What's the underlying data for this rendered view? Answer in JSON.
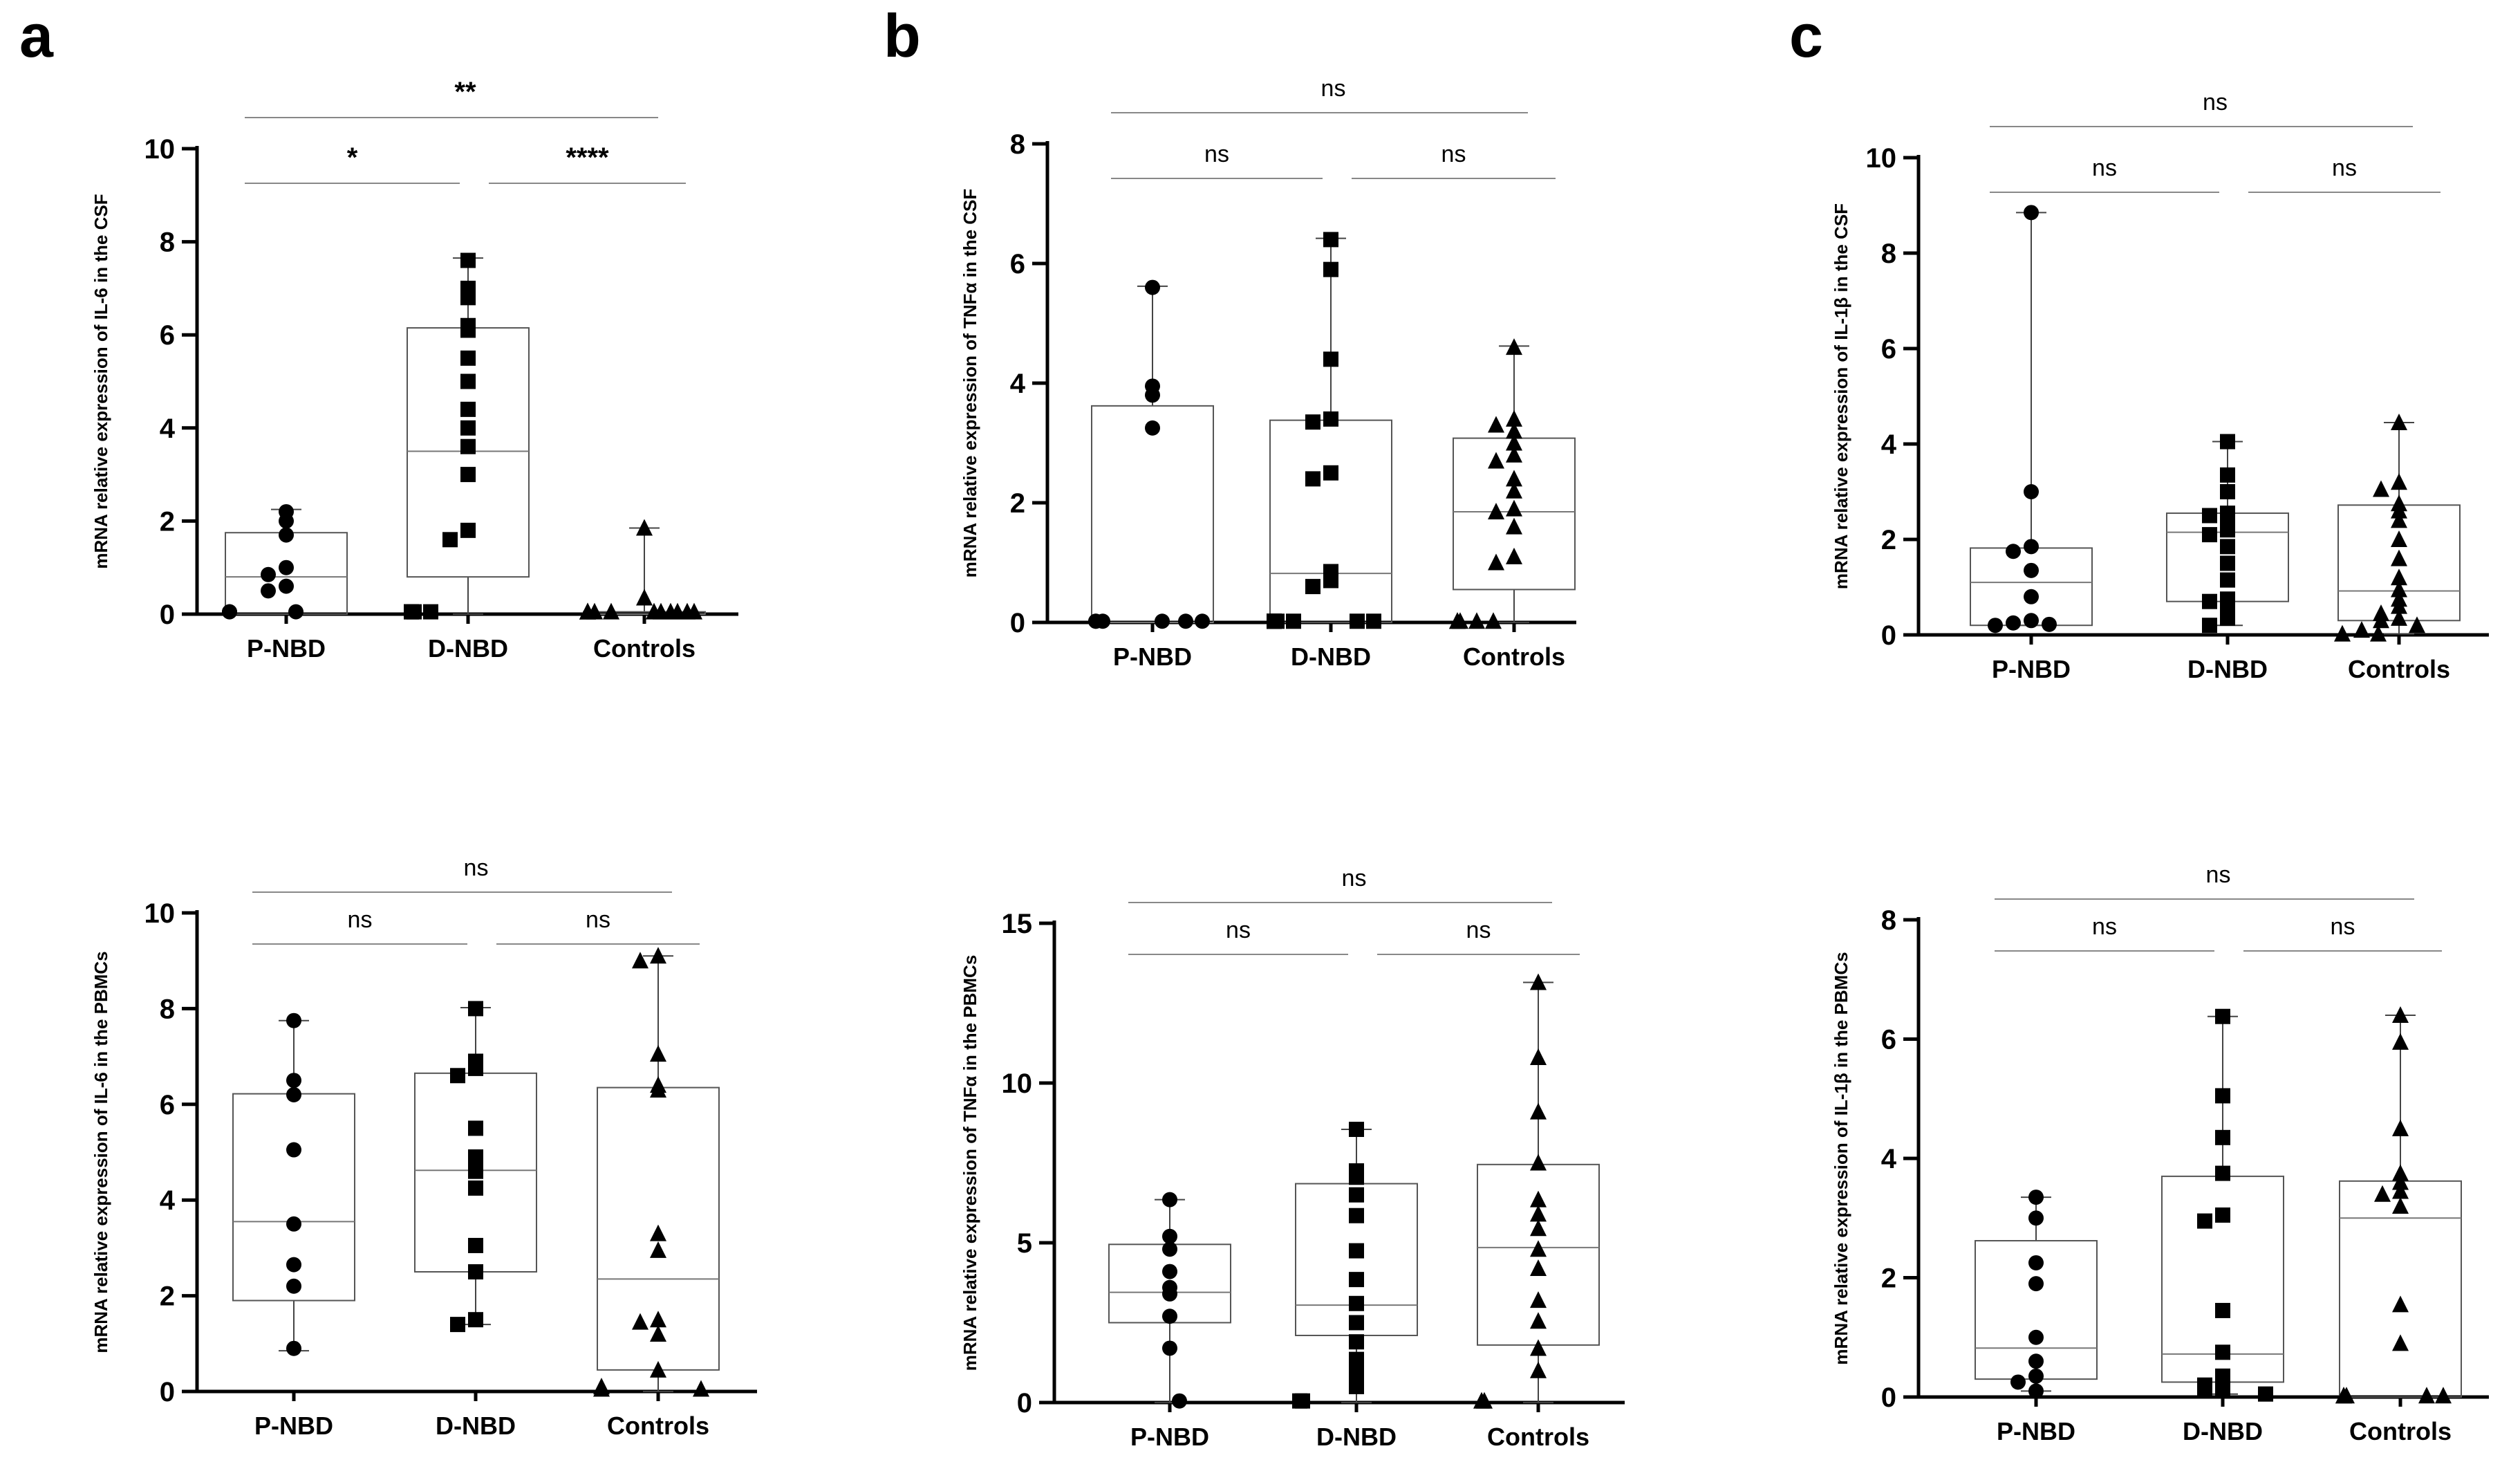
{
  "panel_letters": [
    "a",
    "b",
    "c"
  ],
  "chart_data": [
    {
      "panel": "a",
      "row": "top",
      "type": "box",
      "ylabel": "mRNA relative expression of  IL-6 in  the CSF",
      "ylim": [
        0,
        10
      ],
      "yticks": [
        0,
        2,
        4,
        6,
        8,
        10
      ],
      "categories": [
        "P-NBD",
        "D-NBD",
        "Controls"
      ],
      "markers": [
        "circle",
        "square",
        "triangle"
      ],
      "boxes": [
        {
          "min": 0,
          "q1": 0,
          "median": 0.8,
          "q3": 1.75,
          "max": 2.25
        },
        {
          "min": 0,
          "q1": 0.8,
          "median": 3.5,
          "q3": 6.15,
          "max": 7.65
        },
        {
          "min": 0,
          "q1": 0,
          "median": 0,
          "q3": 0.05,
          "max": 1.85
        }
      ],
      "points": [
        [
          2.2,
          2.0,
          1.7,
          1.0,
          0.85,
          0.6,
          0.5,
          0.05,
          0.05,
          0.05
        ],
        [
          7.6,
          7.0,
          6.8,
          6.2,
          6.1,
          5.5,
          5.0,
          4.4,
          4.0,
          3.6,
          3.0,
          1.8,
          1.6,
          0.05,
          0.05,
          0.05,
          0.05
        ],
        [
          1.85,
          0.35,
          0.05,
          0.05,
          0.05,
          0.05,
          0.05,
          0.05,
          0.05,
          0.05,
          0.05,
          0.05,
          0.05,
          0.05
        ]
      ],
      "comparisons": [
        {
          "from": 0,
          "to": 1,
          "label": "*",
          "level": 1
        },
        {
          "from": 1,
          "to": 2,
          "label": "****",
          "level": 1
        },
        {
          "from": 0,
          "to": 2,
          "label": "**",
          "level": 2
        }
      ]
    },
    {
      "panel": "b",
      "row": "top",
      "type": "box",
      "ylabel": "mRNA relative expression of TNFα in  the CSF",
      "ylim": [
        0,
        8
      ],
      "yticks": [
        0,
        2,
        4,
        6,
        8
      ],
      "categories": [
        "P-NBD",
        "D-NBD",
        "Controls"
      ],
      "markers": [
        "circle",
        "square",
        "triangle"
      ],
      "boxes": [
        {
          "min": 0,
          "q1": 0,
          "median": 0,
          "q3": 3.62,
          "max": 5.62
        },
        {
          "min": 0,
          "q1": 0,
          "median": 0.82,
          "q3": 3.38,
          "max": 6.42
        },
        {
          "min": 0,
          "q1": 0.55,
          "median": 1.85,
          "q3": 3.08,
          "max": 4.62
        }
      ],
      "points": [
        [
          5.6,
          3.95,
          3.8,
          3.25,
          0.02,
          0.02,
          0.02,
          0.02,
          0.02,
          0.02
        ],
        [
          6.4,
          5.9,
          4.4,
          3.4,
          3.35,
          2.5,
          2.4,
          0.85,
          0.7,
          0.6,
          0.02,
          0.02,
          0.02,
          0.02,
          0.02,
          0.02,
          0.02
        ],
        [
          4.6,
          3.4,
          3.3,
          3.2,
          3.0,
          2.8,
          2.7,
          2.4,
          2.2,
          1.9,
          1.85,
          1.6,
          1.1,
          1.0,
          0.02,
          0.02,
          0.02,
          0.02,
          0.02
        ]
      ],
      "comparisons": [
        {
          "from": 0,
          "to": 1,
          "label": "ns",
          "level": 1
        },
        {
          "from": 1,
          "to": 2,
          "label": "ns",
          "level": 1
        },
        {
          "from": 0,
          "to": 2,
          "label": "ns",
          "level": 2
        }
      ]
    },
    {
      "panel": "c",
      "row": "top",
      "type": "box",
      "ylabel": "mRNA relative expression of IL-1β in  the CSF",
      "ylim": [
        0,
        10
      ],
      "yticks": [
        0,
        2,
        4,
        6,
        8,
        10
      ],
      "categories": [
        "P-NBD",
        "D-NBD",
        "Controls"
      ],
      "markers": [
        "circle",
        "square",
        "triangle"
      ],
      "boxes": [
        {
          "min": 0.2,
          "q1": 0.2,
          "median": 1.1,
          "q3": 1.82,
          "max": 8.85
        },
        {
          "min": 0.2,
          "q1": 0.7,
          "median": 2.15,
          "q3": 2.55,
          "max": 4.05
        },
        {
          "min": 0.02,
          "q1": 0.3,
          "median": 0.92,
          "q3": 2.72,
          "max": 4.45
        }
      ],
      "points": [
        [
          8.85,
          3.0,
          1.85,
          1.75,
          1.35,
          0.8,
          0.3,
          0.25,
          0.22,
          0.2
        ],
        [
          4.05,
          3.35,
          3.0,
          2.55,
          2.5,
          2.45,
          2.2,
          2.1,
          1.85,
          1.5,
          1.15,
          0.75,
          0.7,
          0.5,
          0.35,
          0.2
        ],
        [
          4.45,
          3.2,
          3.05,
          2.75,
          2.6,
          2.4,
          2.0,
          1.6,
          1.2,
          0.95,
          0.75,
          0.6,
          0.45,
          0.35,
          0.3,
          0.2,
          0.1,
          0.02,
          0.02
        ]
      ],
      "comparisons": [
        {
          "from": 0,
          "to": 1,
          "label": "ns",
          "level": 1
        },
        {
          "from": 1,
          "to": 2,
          "label": "ns",
          "level": 1
        },
        {
          "from": 0,
          "to": 2,
          "label": "ns",
          "level": 2
        }
      ]
    },
    {
      "panel": "a",
      "row": "bottom",
      "type": "box",
      "ylabel": "mRNA relative expression of  IL-6 in  the PBMCs",
      "ylim": [
        0,
        10
      ],
      "yticks": [
        0,
        2,
        4,
        6,
        8,
        10
      ],
      "categories": [
        "P-NBD",
        "D-NBD",
        "Controls"
      ],
      "markers": [
        "circle",
        "square",
        "triangle"
      ],
      "boxes": [
        {
          "min": 0.85,
          "q1": 1.9,
          "median": 3.55,
          "q3": 6.22,
          "max": 7.75
        },
        {
          "min": 1.4,
          "q1": 2.5,
          "median": 4.62,
          "q3": 6.65,
          "max": 8.02
        },
        {
          "min": 0,
          "q1": 0.45,
          "median": 2.35,
          "q3": 6.35,
          "max": 9.1
        }
      ],
      "points": [
        [
          7.75,
          6.5,
          6.2,
          5.05,
          3.5,
          2.65,
          2.2,
          0.9
        ],
        [
          8.0,
          6.9,
          6.75,
          6.6,
          5.5,
          4.9,
          4.6,
          4.25,
          3.05,
          2.5,
          1.5,
          1.4
        ],
        [
          9.1,
          9.0,
          7.05,
          6.4,
          6.3,
          3.3,
          2.95,
          1.5,
          1.45,
          1.2,
          0.45,
          0.1,
          0.05,
          0.05
        ]
      ],
      "comparisons": [
        {
          "from": 0,
          "to": 1,
          "label": "ns",
          "level": 1
        },
        {
          "from": 1,
          "to": 2,
          "label": "ns",
          "level": 1
        },
        {
          "from": 0,
          "to": 2,
          "label": "ns",
          "level": 2
        }
      ]
    },
    {
      "panel": "b",
      "row": "bottom",
      "type": "box",
      "ylabel": "mRNA relative expression of TNFα in the PBMCs",
      "ylim": [
        0,
        15
      ],
      "yticks": [
        0,
        5,
        10,
        15
      ],
      "categories": [
        "P-NBD",
        "D-NBD",
        "Controls"
      ],
      "markers": [
        "circle",
        "square",
        "triangle"
      ],
      "boxes": [
        {
          "min": 0,
          "q1": 2.5,
          "median": 3.45,
          "q3": 4.95,
          "max": 6.35
        },
        {
          "min": 0,
          "q1": 2.1,
          "median": 3.05,
          "q3": 6.85,
          "max": 8.55
        },
        {
          "min": 0,
          "q1": 1.8,
          "median": 4.85,
          "q3": 7.45,
          "max": 13.15
        }
      ],
      "points": [
        [
          6.35,
          5.2,
          4.8,
          4.1,
          3.6,
          3.4,
          2.7,
          1.7,
          0.05
        ],
        [
          8.55,
          7.25,
          7.05,
          6.5,
          5.85,
          4.75,
          3.85,
          3.1,
          2.5,
          1.9,
          1.35,
          0.9,
          0.5,
          0.05,
          0.05
        ],
        [
          13.15,
          10.8,
          9.1,
          7.5,
          6.35,
          5.9,
          5.45,
          4.8,
          4.2,
          3.2,
          2.55,
          1.7,
          1.0,
          0.05,
          0.05
        ]
      ],
      "comparisons": [
        {
          "from": 0,
          "to": 1,
          "label": "ns",
          "level": 1
        },
        {
          "from": 1,
          "to": 2,
          "label": "ns",
          "level": 1
        },
        {
          "from": 0,
          "to": 2,
          "label": "ns",
          "level": 2
        }
      ]
    },
    {
      "panel": "c",
      "row": "bottom",
      "type": "box",
      "ylabel": "mRNA relative expression of IL-1β in  the PBMCs",
      "ylim": [
        0,
        8
      ],
      "yticks": [
        0,
        2,
        4,
        6,
        8
      ],
      "categories": [
        "P-NBD",
        "D-NBD",
        "Controls"
      ],
      "markers": [
        "circle",
        "square",
        "triangle"
      ],
      "boxes": [
        {
          "min": 0.1,
          "q1": 0.3,
          "median": 0.82,
          "q3": 2.62,
          "max": 3.35
        },
        {
          "min": 0.05,
          "q1": 0.25,
          "median": 0.72,
          "q3": 3.7,
          "max": 6.38
        },
        {
          "min": 0,
          "q1": 0,
          "median": 3.0,
          "q3": 3.62,
          "max": 6.4
        }
      ],
      "points": [
        [
          3.35,
          3.0,
          2.25,
          1.9,
          1.0,
          0.6,
          0.35,
          0.25,
          0.1
        ],
        [
          6.38,
          5.05,
          4.35,
          3.75,
          3.05,
          2.95,
          1.45,
          0.75,
          0.35,
          0.2,
          0.15,
          0.1,
          0.05
        ],
        [
          6.4,
          5.95,
          4.5,
          3.75,
          3.6,
          3.45,
          3.4,
          3.2,
          1.55,
          0.9,
          0.02,
          0.02,
          0.02,
          0.02,
          0.02
        ]
      ],
      "comparisons": [
        {
          "from": 0,
          "to": 1,
          "label": "ns",
          "level": 1
        },
        {
          "from": 1,
          "to": 2,
          "label": "ns",
          "level": 1
        },
        {
          "from": 0,
          "to": 2,
          "label": "ns",
          "level": 2
        }
      ]
    }
  ]
}
